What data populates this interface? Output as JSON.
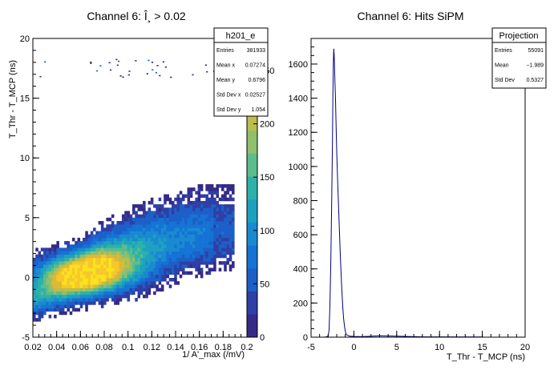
{
  "chart_data": [
    {
      "type": "heatmap",
      "title": "Channel 6: Î¸ > 0.02",
      "xlabel": "1/ A'_max (/mV)",
      "ylabel": "T_Thr - T_MCP (ns)",
      "xlim": [
        0.02,
        0.2
      ],
      "ylim": [
        -5,
        20
      ],
      "x_ticks": [
        "0.02",
        "0.04",
        "0.06",
        "0.08",
        "0.1",
        "0.12",
        "0.14",
        "0.16",
        "0.18",
        "0.2"
      ],
      "y_ticks": [
        "-5",
        "0",
        "5",
        "10",
        "15",
        "20"
      ],
      "colorbar_ticks": [
        "0",
        "50",
        "100",
        "150",
        "200",
        "250"
      ],
      "colorbar_range": [
        0,
        280
      ],
      "palette": [
        "#352a87",
        "#2e3fa5",
        "#1c5fc8",
        "#1473d4",
        "#1a8ad0",
        "#1ea0c0",
        "#2cb2a8",
        "#5dbc8d",
        "#8fbf6c",
        "#bcbd4b",
        "#e0b932",
        "#f7c72a",
        "#f9e21e"
      ],
      "ridge": {
        "points": [
          [
            0.02,
            -1.8
          ],
          [
            0.04,
            -0.9
          ],
          [
            0.06,
            0.0
          ],
          [
            0.08,
            1.0
          ],
          [
            0.1,
            1.8
          ],
          [
            0.12,
            2.4
          ],
          [
            0.14,
            2.9
          ],
          [
            0.16,
            3.3
          ],
          [
            0.18,
            3.6
          ],
          [
            0.2,
            3.9
          ]
        ],
        "peak": [
          0.065,
          0.2
        ]
      },
      "outliers_band_y": [
        16.8,
        18.3
      ],
      "stats": {
        "name": "h201_e",
        "rows": [
          {
            "label": "Entries",
            "value": "381933"
          },
          {
            "label": "Mean x",
            "value": "0.07274"
          },
          {
            "label": "Mean y",
            "value": "0.6796"
          },
          {
            "label": "Std Dev x",
            "value": "0.02527"
          },
          {
            "label": "Std Dev y",
            "value": "1.054"
          }
        ]
      }
    },
    {
      "type": "line",
      "title": "Channel 6: Hits SiPM",
      "xlabel": "T_Thr - T_MCP (ns)",
      "ylabel": "",
      "xlim": [
        -5,
        20
      ],
      "ylim": [
        0,
        1750
      ],
      "x_ticks": [
        "-5",
        "0",
        "5",
        "10",
        "15",
        "20"
      ],
      "y_ticks": [
        "0",
        "200",
        "400",
        "600",
        "800",
        "1000",
        "1200",
        "1400",
        "1600"
      ],
      "series": [
        {
          "color": "#000080",
          "x": [
            -3.4,
            -3.2,
            -3.0,
            -2.9,
            -2.8,
            -2.7,
            -2.6,
            -2.5,
            -2.45,
            -2.4,
            -2.35,
            -2.3,
            -2.25,
            -2.2,
            -2.15,
            -2.1,
            -2.05,
            -2.0,
            -1.9,
            -1.8,
            -1.7,
            -1.6,
            -1.5,
            -1.4,
            -1.3,
            -1.2,
            -1.1,
            -1.0,
            -0.9,
            -0.5,
            0.0,
            1.0,
            3.0,
            8.0,
            15.0
          ],
          "y": [
            1,
            2,
            8,
            40,
            180,
            420,
            760,
            1150,
            1420,
            1600,
            1690,
            1650,
            1560,
            1480,
            1400,
            1290,
            1180,
            1080,
            920,
            780,
            640,
            500,
            380,
            270,
            180,
            110,
            65,
            35,
            15,
            6,
            4,
            3,
            8,
            2,
            1
          ]
        }
      ],
      "stats": {
        "name": "Projection",
        "rows": [
          {
            "label": "Entries",
            "value": "55091"
          },
          {
            "label": "Mean",
            "value": "−1.989"
          },
          {
            "label": "Std Dev",
            "value": "0.5327"
          }
        ]
      }
    }
  ]
}
